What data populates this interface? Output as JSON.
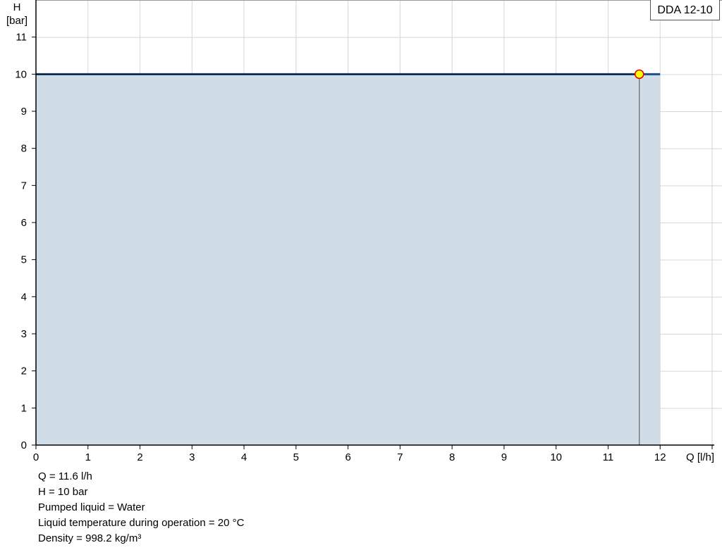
{
  "chart_data": {
    "type": "area",
    "legend": [
      "DDA 12-10"
    ],
    "legend_placement": "top-right",
    "xlabel": "Q [l/h]",
    "ylabel_line1": "H",
    "ylabel_line2": "[bar]",
    "xlim": [
      0,
      13
    ],
    "ylim": [
      0,
      12
    ],
    "grid": true,
    "x_ticks": [
      "0",
      "1",
      "2",
      "3",
      "4",
      "5",
      "6",
      "7",
      "8",
      "9",
      "10",
      "11",
      "12"
    ],
    "y_ticks": [
      "0",
      "1",
      "2",
      "3",
      "4",
      "5",
      "6",
      "7",
      "8",
      "9",
      "10",
      "11"
    ],
    "series": [
      {
        "x": [
          0,
          12
        ],
        "y": [
          10,
          10
        ],
        "color": "#1f4e86",
        "fill": "#d0dce6"
      }
    ],
    "duty_point": {
      "x": 11.6,
      "y": 10,
      "fill": "#ffff00",
      "stroke": "#e00000"
    }
  },
  "info": [
    "Q = 11.6 l/h",
    "H = 10 bar",
    "Pumped liquid = Water",
    "Liquid temperature during operation = 20 °C",
    "Density = 998.2 kg/m³"
  ]
}
